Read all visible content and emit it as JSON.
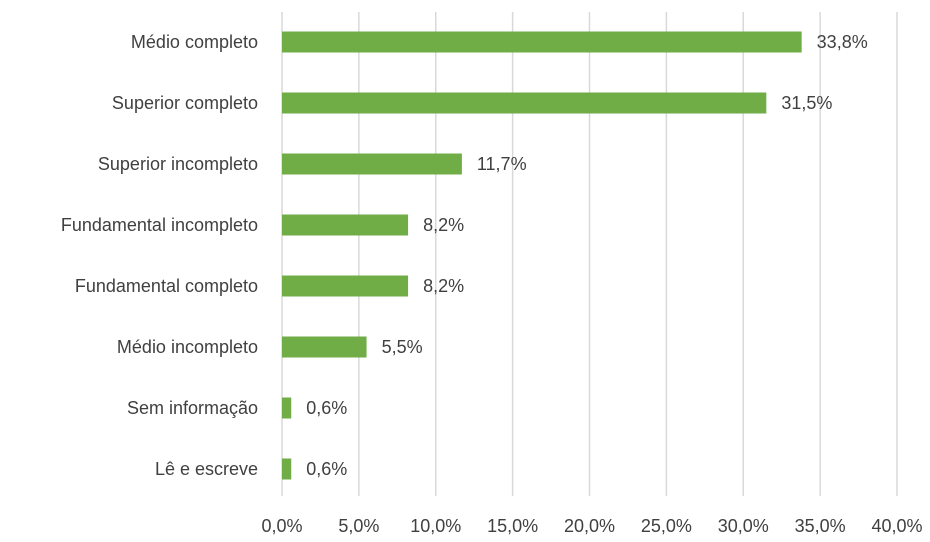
{
  "chart_data": {
    "type": "bar",
    "orientation": "horizontal",
    "title": "",
    "xlabel": "",
    "ylabel": "",
    "categories": [
      "Médio completo",
      "Superior completo",
      "Superior incompleto",
      "Fundamental incompleto",
      "Fundamental completo",
      "Médio incompleto",
      "Sem informação",
      "Lê e escreve"
    ],
    "values": [
      33.8,
      31.5,
      11.7,
      8.2,
      8.2,
      5.5,
      0.6,
      0.6
    ],
    "data_labels": [
      "33,8%",
      "31,5%",
      "11,7%",
      "8,2%",
      "8,2%",
      "5,5%",
      "0,6%",
      "0,6%"
    ],
    "xlim": [
      0,
      40
    ],
    "x_ticks": [
      0,
      5,
      10,
      15,
      20,
      25,
      30,
      35,
      40
    ],
    "x_tick_labels": [
      "0,0%",
      "5,0%",
      "10,0%",
      "15,0%",
      "20,0%",
      "25,0%",
      "30,0%",
      "35,0%",
      "40,0%"
    ],
    "grid": "vertical",
    "legend": "none",
    "colors": {
      "bar": "#70ad47",
      "grid": "#d9d9d9",
      "text": "#404040"
    }
  }
}
